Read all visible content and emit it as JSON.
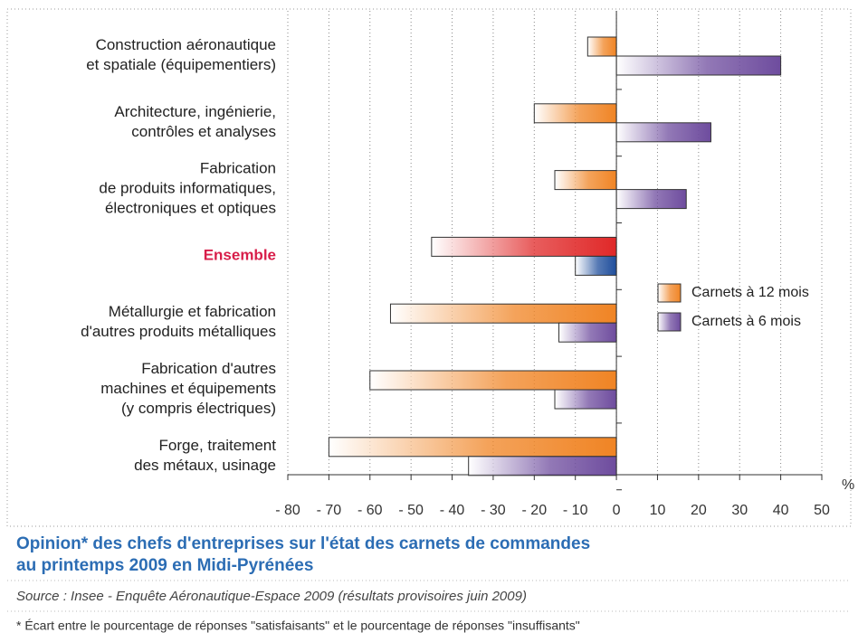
{
  "chart_data": {
    "type": "hbar",
    "title": [
      "Opinion* des chefs d'entreprises sur l'état des carnets de commandes",
      "au printemps 2009 en Midi-Pyrénées"
    ],
    "source": "Source : Insee - Enquête Aéronautique-Espace 2009 (résultats provisoires juin 2009)",
    "note": "* Écart entre le pourcentage de réponses \"satisfaisants\" et le pourcentage de réponses \"insuffisants\"",
    "x_label": "%",
    "categories": [
      [
        "Construction aéronautique",
        "et spatiale (équipementiers)"
      ],
      [
        "Architecture, ingénierie,",
        "contrôles et analyses"
      ],
      [
        "Fabrication",
        "de produits informatiques,",
        "électroniques et optiques"
      ],
      [
        "Ensemble"
      ],
      [
        "Métallurgie et fabrication",
        "d'autres produits métalliques"
      ],
      [
        "Fabrication d'autres",
        "machines et équipements",
        "(y compris électriques)"
      ],
      [
        "Forge, traitement",
        "des métaux, usinage"
      ]
    ],
    "series": [
      {
        "name": "Carnets à 12 mois",
        "color": "#f08424",
        "values": [
          -7,
          -20,
          -15,
          -45,
          -55,
          -60,
          -70
        ]
      },
      {
        "name": "Carnets à 6 mois",
        "color": "#6e4c9e",
        "values": [
          40,
          23,
          17,
          -10,
          -14,
          -15,
          -36
        ]
      }
    ],
    "highlight": {
      "index": 3,
      "colors": [
        "#e02828",
        "#1f4e9c"
      ],
      "label_color": "#d81e4a"
    },
    "xlim": [
      -80,
      50
    ],
    "xticks": [
      {
        "value": -80,
        "label": "- 80"
      },
      {
        "value": -70,
        "label": "- 70"
      },
      {
        "value": -60,
        "label": "- 60"
      },
      {
        "value": -50,
        "label": "- 50"
      },
      {
        "value": -40,
        "label": "- 40"
      },
      {
        "value": -30,
        "label": "- 30"
      },
      {
        "value": -20,
        "label": "- 20"
      },
      {
        "value": -10,
        "label": "- 10"
      },
      0,
      10,
      20,
      30,
      40,
      50
    ],
    "grid": true,
    "legend": "right"
  }
}
